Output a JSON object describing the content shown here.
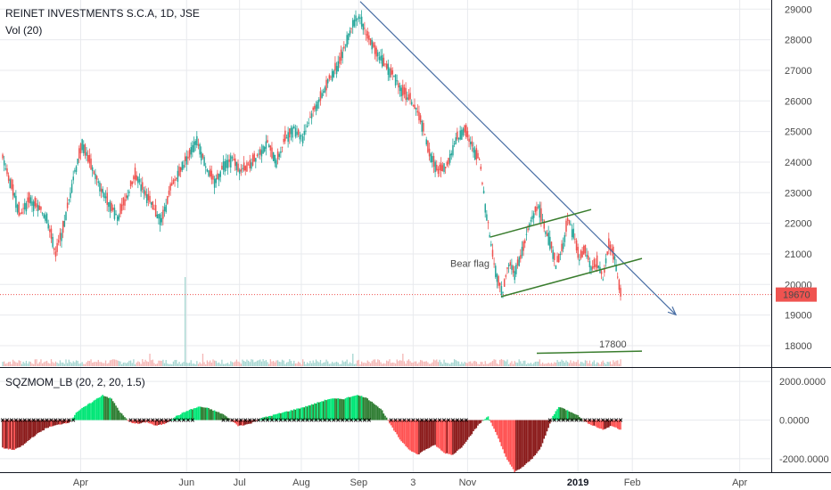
{
  "header": {
    "title": "REINET INVESTMENTS S.C.A, 1D, JSE",
    "volume_label": "Vol (20)",
    "indicator_label": "SQZMOM_LB (20, 2, 20, 1.5)"
  },
  "chart_data": [
    {
      "type": "candlestick",
      "title": "REINET INVESTMENTS S.C.A, 1D, JSE",
      "y_ticks": [
        18000,
        19000,
        20000,
        21000,
        22000,
        23000,
        24000,
        25000,
        26000,
        27000,
        28000,
        29000
      ],
      "ylim": [
        17300,
        29300
      ],
      "x_ticks": [
        "Apr",
        "Jun",
        "Jul",
        "Aug",
        "Sep",
        "3",
        "Nov",
        "2019",
        "Feb",
        "Apr"
      ],
      "last_price": 19670,
      "price_path": [
        [
          0,
          24100
        ],
        [
          6,
          23200
        ],
        [
          12,
          22300
        ],
        [
          18,
          22800
        ],
        [
          24,
          22500
        ],
        [
          30,
          22200
        ],
        [
          36,
          21000
        ],
        [
          42,
          22000
        ],
        [
          48,
          23500
        ],
        [
          54,
          24600
        ],
        [
          60,
          23900
        ],
        [
          66,
          23200
        ],
        [
          72,
          22700
        ],
        [
          78,
          22200
        ],
        [
          84,
          22800
        ],
        [
          90,
          23600
        ],
        [
          96,
          23100
        ],
        [
          102,
          22500
        ],
        [
          108,
          22100
        ],
        [
          114,
          23100
        ],
        [
          120,
          23700
        ],
        [
          126,
          24200
        ],
        [
          132,
          24700
        ],
        [
          138,
          23900
        ],
        [
          144,
          23300
        ],
        [
          150,
          23900
        ],
        [
          156,
          24100
        ],
        [
          162,
          23700
        ],
        [
          168,
          23900
        ],
        [
          174,
          24300
        ],
        [
          180,
          24600
        ],
        [
          186,
          24000
        ],
        [
          192,
          24800
        ],
        [
          198,
          25100
        ],
        [
          204,
          24800
        ],
        [
          210,
          25600
        ],
        [
          216,
          26100
        ],
        [
          222,
          26700
        ],
        [
          228,
          27200
        ],
        [
          234,
          28000
        ],
        [
          240,
          28800
        ],
        [
          244,
          28600
        ],
        [
          248,
          28100
        ],
        [
          254,
          27600
        ],
        [
          260,
          27200
        ],
        [
          266,
          26800
        ],
        [
          272,
          26300
        ],
        [
          278,
          26000
        ],
        [
          284,
          25400
        ],
        [
          290,
          24300
        ],
        [
          296,
          23700
        ],
        [
          302,
          23900
        ],
        [
          308,
          24700
        ],
        [
          314,
          25100
        ],
        [
          320,
          24400
        ],
        [
          324,
          24100
        ],
        [
          328,
          22600
        ],
        [
          332,
          21300
        ],
        [
          336,
          20200
        ],
        [
          340,
          19800
        ],
        [
          344,
          20700
        ],
        [
          348,
          20400
        ],
        [
          352,
          20900
        ],
        [
          356,
          21600
        ],
        [
          360,
          22200
        ],
        [
          364,
          22600
        ],
        [
          368,
          21900
        ],
        [
          372,
          21400
        ],
        [
          376,
          20600
        ],
        [
          380,
          21100
        ],
        [
          384,
          22100
        ],
        [
          388,
          21700
        ],
        [
          392,
          20800
        ],
        [
          396,
          21100
        ],
        [
          400,
          20500
        ],
        [
          404,
          20700
        ],
        [
          408,
          20200
        ],
        [
          412,
          21300
        ],
        [
          416,
          20900
        ],
        [
          420,
          19670
        ]
      ],
      "annotations": [
        {
          "text": "Bear flag",
          "price": 20700
        },
        {
          "text": "17800",
          "price": 17800
        }
      ],
      "trendlines": [
        {
          "name": "downtrend",
          "color": "#4a6fa5"
        },
        {
          "name": "flag-upper",
          "color": "#3a7d2e"
        },
        {
          "name": "flag-lower",
          "color": "#3a7d2e"
        },
        {
          "name": "target-17800",
          "color": "#3a7d2e"
        }
      ],
      "volume": {
        "label": "Vol (20)",
        "spike_bar": 124,
        "spike_relative": 1.0,
        "typical_relative": 0.06
      }
    },
    {
      "type": "histogram",
      "title": "SQZMOM_LB (20, 2, 20, 1.5)",
      "y_ticks": [
        2000.0,
        0.0,
        -2000.0
      ],
      "y_tick_labels": [
        "2000.0000",
        "0.0000",
        "-2000.0000"
      ],
      "ylim": [
        -2700,
        2700
      ],
      "momentum_path": [
        [
          0,
          -1450
        ],
        [
          8,
          -1550
        ],
        [
          14,
          -1300
        ],
        [
          20,
          -900
        ],
        [
          30,
          -400
        ],
        [
          40,
          -200
        ],
        [
          46,
          -100
        ],
        [
          50,
          400
        ],
        [
          60,
          900
        ],
        [
          68,
          1300
        ],
        [
          74,
          1100
        ],
        [
          80,
          400
        ],
        [
          86,
          -100
        ],
        [
          92,
          -200
        ],
        [
          98,
          -100
        ],
        [
          104,
          -300
        ],
        [
          110,
          -200
        ],
        [
          118,
          200
        ],
        [
          126,
          500
        ],
        [
          134,
          700
        ],
        [
          140,
          600
        ],
        [
          150,
          300
        ],
        [
          160,
          -300
        ],
        [
          168,
          -200
        ],
        [
          176,
          100
        ],
        [
          186,
          300
        ],
        [
          196,
          500
        ],
        [
          206,
          700
        ],
        [
          214,
          900
        ],
        [
          222,
          1100
        ],
        [
          232,
          1100
        ],
        [
          240,
          1300
        ],
        [
          246,
          1200
        ],
        [
          252,
          900
        ],
        [
          258,
          500
        ],
        [
          264,
          -300
        ],
        [
          270,
          -1000
        ],
        [
          276,
          -1500
        ],
        [
          282,
          -1800
        ],
        [
          288,
          -1500
        ],
        [
          294,
          -1300
        ],
        [
          300,
          -1700
        ],
        [
          306,
          -1800
        ],
        [
          312,
          -1400
        ],
        [
          318,
          -800
        ],
        [
          324,
          -200
        ],
        [
          330,
          200
        ],
        [
          336,
          -800
        ],
        [
          342,
          -1900
        ],
        [
          348,
          -2700
        ],
        [
          354,
          -2400
        ],
        [
          360,
          -2000
        ],
        [
          366,
          -1400
        ],
        [
          370,
          -600
        ],
        [
          374,
          200
        ],
        [
          378,
          700
        ],
        [
          384,
          500
        ],
        [
          390,
          300
        ],
        [
          396,
          -100
        ],
        [
          402,
          -300
        ],
        [
          408,
          -500
        ],
        [
          414,
          -300
        ],
        [
          420,
          -500
        ]
      ],
      "colors": {
        "pos_rising": "#00e676",
        "pos_falling": "#2e7d32",
        "neg_falling": "#ff5252",
        "neg_rising": "#8b1a1a",
        "squeeze": "#000000"
      }
    }
  ],
  "colors": {
    "up": "#26a69a",
    "down": "#ef5350",
    "trend_blue": "#4a6fa5",
    "flag_green": "#3a7d2e",
    "price_label_bg": "#ef5350",
    "grid": "#e8eaee",
    "vol_up": "#a5d6d1",
    "vol_down": "#f4b5b4"
  },
  "icons": []
}
